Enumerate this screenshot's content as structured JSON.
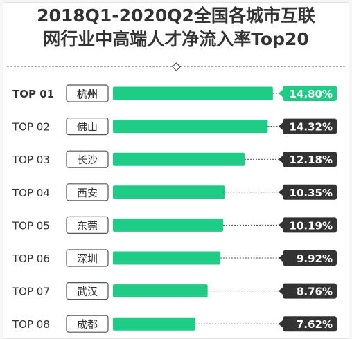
{
  "title_line1": "2018Q1-2020Q2全国各城市互联",
  "title_line2": "网行业中高端人才净流入率Top20",
  "colors": {
    "bar": "#1ecc86",
    "highlight_badge": "#1ecc86",
    "badge": "#333333",
    "text": "#333333"
  },
  "chart_data": {
    "type": "bar",
    "orientation": "horizontal",
    "unit": "%",
    "xlim": [
      0,
      16
    ],
    "categories": [
      "杭州",
      "佛山",
      "长沙",
      "西安",
      "东莞",
      "深圳",
      "武汉",
      "成都"
    ],
    "ranks": [
      "TOP 01",
      "TOP 02",
      "TOP 03",
      "TOP 04",
      "TOP 05",
      "TOP 06",
      "TOP 07",
      "TOP 08"
    ],
    "values": [
      14.8,
      14.32,
      12.18,
      10.35,
      10.19,
      9.92,
      8.76,
      7.62
    ],
    "value_labels": [
      "14.80%",
      "14.32%",
      "12.18%",
      "10.35%",
      "10.19%",
      "9.92%",
      "8.76%",
      "7.62%"
    ]
  }
}
